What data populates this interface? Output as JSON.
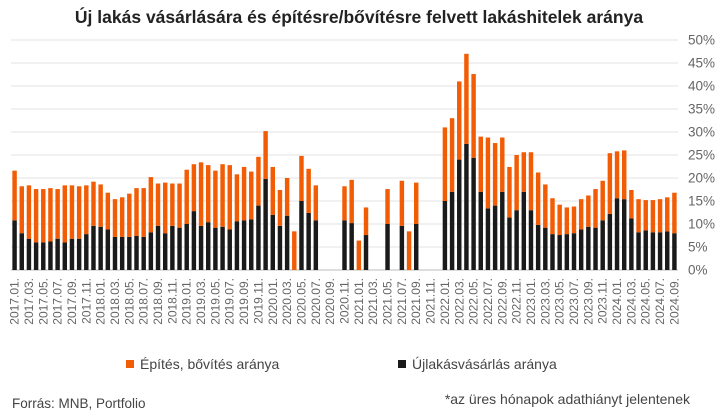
{
  "chart_data": {
    "type": "bar",
    "stacked": true,
    "title": "Új lakás vásárlására és építésre/bővítésre felvett lakáshitelek aránya",
    "ylim": [
      0,
      50
    ],
    "yticks": [
      "0%",
      "5%",
      "10%",
      "15%",
      "20%",
      "25%",
      "30%",
      "35%",
      "40%",
      "45%",
      "50%"
    ],
    "categories": [
      "2017.01.",
      "2017.02.",
      "2017.03.",
      "2017.04.",
      "2017.05.",
      "2017.06.",
      "2017.07.",
      "2017.08.",
      "2017.09.",
      "2017.10.",
      "2017.11.",
      "2017.12.",
      "2018.01.",
      "2018.02.",
      "2018.03.",
      "2018.04.",
      "2018.05.",
      "2018.06.",
      "2018.07.",
      "2018.08.",
      "2018.09.",
      "2018.10.",
      "2018.11.",
      "2018.12.",
      "2019.01.",
      "2019.02.",
      "2019.03.",
      "2019.04.",
      "2019.05.",
      "2019.06.",
      "2019.07.",
      "2019.08.",
      "2019.09.",
      "2019.10.",
      "2019.11.",
      "2019.12.",
      "2020.01.",
      "2020.02.",
      "2020.03.",
      "2020.04.",
      "2020.05.",
      "2020.06.",
      "2020.07.",
      "2020.08.",
      "2020.09.",
      "2020.10.",
      "2020.11.",
      "2020.12.",
      "2021.01.",
      "2021.02.",
      "2021.03.",
      "2021.04.",
      "2021.05.",
      "2021.06.",
      "2021.07.",
      "2021.08.",
      "2021.09.",
      "2021.10.",
      "2021.11.",
      "2021.12.",
      "2022.01.",
      "2022.02.",
      "2022.03.",
      "2022.04.",
      "2022.05.",
      "2022.06.",
      "2022.07.",
      "2022.08.",
      "2022.09.",
      "2022.10.",
      "2022.11.",
      "2022.12.",
      "2023.01.",
      "2023.02.",
      "2023.03.",
      "2023.04.",
      "2023.05.",
      "2023.06.",
      "2023.07.",
      "2023.08.",
      "2023.09.",
      "2023.10.",
      "2023.11.",
      "2023.12.",
      "2024.01.",
      "2024.02.",
      "2024.03.",
      "2024.04.",
      "2024.05.",
      "2024.06.",
      "2024.07.",
      "2024.08.",
      "2024.09."
    ],
    "tick_labels": [
      "2017.01.",
      "2017.03.",
      "2017.05.",
      "2017.07.",
      "2017.09.",
      "2017.11.",
      "2018.01.",
      "2018.03.",
      "2018.05.",
      "2018.07.",
      "2018.09.",
      "2018.11.",
      "2019.01.",
      "2019.03.",
      "2019.05.",
      "2019.07.",
      "2019.09.",
      "2019.11.",
      "2020.01.",
      "2020.03.",
      "2020.05.",
      "2020.07.",
      "2020.09.",
      "2020.11.",
      "2021.01.",
      "2021.03.",
      "2021.05.",
      "2021.07.",
      "2021.09.",
      "2021.11.",
      "2022.01.",
      "2022.03.",
      "2022.05.",
      "2022.07.",
      "2022.09.",
      "2022.11.",
      "2023.01.",
      "2023.03.",
      "2023.05.",
      "2023.07.",
      "2023.09.",
      "2023.11.",
      "2024.01.",
      "2024.03.",
      "2024.05.",
      "2024.07.",
      "2024.09."
    ],
    "series": [
      {
        "name": "Újlakásvásárlás aránya",
        "color": "#1a1a1a",
        "values": [
          10.8,
          8,
          6.8,
          6,
          6,
          6.2,
          6.8,
          6,
          6.8,
          6.8,
          7.8,
          9.6,
          9.4,
          8.8,
          7.2,
          7.2,
          7.2,
          7.4,
          7.2,
          8.2,
          9.6,
          8,
          9.6,
          9.2,
          10,
          12.8,
          9.6,
          10.4,
          9.2,
          9.4,
          8.8,
          10.6,
          10.8,
          11,
          14,
          19.8,
          12,
          9.6,
          11.8,
          0,
          15,
          12.4,
          10.8,
          null,
          null,
          null,
          10.8,
          10.2,
          0,
          7.6,
          null,
          null,
          10,
          null,
          9.6,
          0,
          10,
          null,
          null,
          null,
          15,
          17,
          24,
          27.4,
          24.4,
          17,
          13.4,
          14,
          17,
          11.4,
          13,
          17,
          13,
          9.8,
          9.2,
          7.8,
          7.6,
          7.8,
          8,
          8.8,
          9.4,
          9.2,
          10.8,
          12.2,
          15.6,
          15.4,
          11.2,
          8.2,
          8.6,
          8.2,
          8.2,
          8.4,
          8
        ]
      },
      {
        "name": "Építés, bővítés aránya",
        "color": "#f25c05",
        "values": [
          10.8,
          10.2,
          11.6,
          11.6,
          11.6,
          11.6,
          10.8,
          12.4,
          11.6,
          11.4,
          10.6,
          9.6,
          9.2,
          8,
          8.2,
          8.6,
          9.4,
          10.4,
          10.6,
          12,
          9.2,
          11,
          9.2,
          9.6,
          11.8,
          10.2,
          13.8,
          12.4,
          12.4,
          13.6,
          14,
          10.2,
          11.6,
          10.4,
          10.6,
          10.4,
          10.4,
          7.8,
          8.2,
          8.4,
          9.8,
          9.6,
          7.6,
          null,
          null,
          null,
          7.4,
          9.4,
          6.4,
          6,
          null,
          null,
          7.6,
          null,
          9.8,
          8.4,
          9,
          null,
          null,
          null,
          16,
          16,
          17,
          19.6,
          18.2,
          12,
          15.4,
          13.6,
          11.8,
          11,
          12,
          8.6,
          12.6,
          11.4,
          9.4,
          7.8,
          6.6,
          5.8,
          5.8,
          6.6,
          6.8,
          8.4,
          8.6,
          13.2,
          10.2,
          10.6,
          6.2,
          7.2,
          6.6,
          7,
          7.2,
          7.4,
          8.8
        ]
      }
    ],
    "legend": [
      "Építés, bővítés aránya",
      "Újlakásvásárlás aránya"
    ],
    "source": "Forrás: MNB, Portfolio",
    "footnote": "*az üres hónapok adathiányt jelentenek"
  }
}
